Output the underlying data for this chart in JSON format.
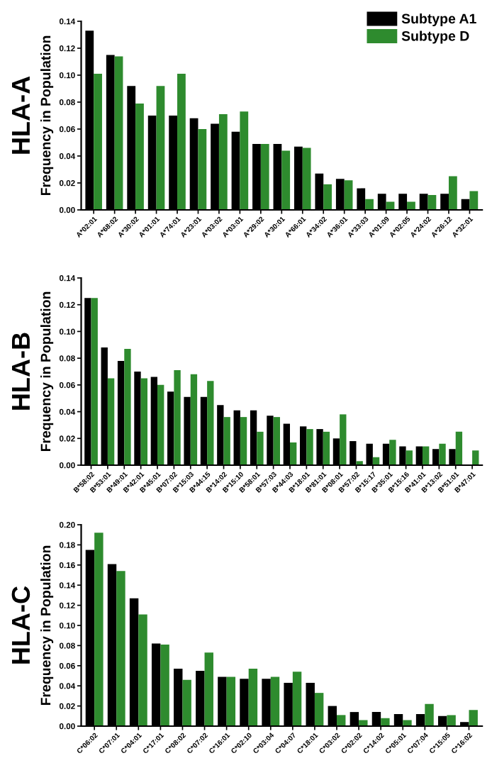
{
  "chart_data": [
    {
      "type": "bar",
      "title": "HLA-A",
      "ylabel": "Frequency in Population",
      "legend": "top right",
      "categories": [
        "A*02:01",
        "A*68:02",
        "A*30:02",
        "A*01:01",
        "A*74:01",
        "A*23:01",
        "A*03:02",
        "A*03:01",
        "A*29:02",
        "A*30:01",
        "A*66:01",
        "A*34:02",
        "A*36:01",
        "A*33:03",
        "A*01:09",
        "A*02:05",
        "A*24:02",
        "A*26:12",
        "A*32:01"
      ],
      "series": [
        {
          "name": "Subtype A1",
          "color": "#000000",
          "values": [
            0.133,
            0.115,
            0.092,
            0.07,
            0.07,
            0.068,
            0.064,
            0.058,
            0.049,
            0.049,
            0.047,
            0.027,
            0.023,
            0.016,
            0.012,
            0.012,
            0.012,
            0.012,
            0.008
          ]
        },
        {
          "name": "Subtype D",
          "color": "#2e8b2e",
          "values": [
            0.101,
            0.114,
            0.079,
            0.092,
            0.101,
            0.06,
            0.071,
            0.073,
            0.049,
            0.044,
            0.046,
            0.019,
            0.022,
            0.008,
            0.006,
            0.006,
            0.011,
            0.025,
            0.014
          ]
        }
      ],
      "ylim": [
        0,
        0.14
      ],
      "yticks": [
        {
          "value": 0,
          "label": "0.00"
        },
        {
          "value": 0.02,
          "label": "0.02"
        },
        {
          "value": 0.04,
          "label": "0.04"
        },
        {
          "value": 0.06,
          "label": "0.06"
        },
        {
          "value": 0.08,
          "label": "0.08"
        },
        {
          "value": 0.1,
          "label": "0.10"
        },
        {
          "value": 0.12,
          "label": "0.12"
        },
        {
          "value": 0.14,
          "label": "0.14"
        }
      ]
    },
    {
      "type": "bar",
      "title": "HLA-B",
      "ylabel": "Frequency in Population",
      "categories": [
        "B*58:02",
        "B*53:01",
        "B*49:01",
        "B*42:01",
        "B*45:01",
        "B*07:02",
        "B*15:03",
        "B*44:15",
        "B*14:02",
        "B*15:10",
        "B*58:01",
        "B*57:03",
        "B*44:03",
        "B*18:01",
        "B*81:01",
        "B*08:01",
        "B*57:02",
        "B*15:17",
        "B*35:01",
        "B*15:16",
        "B*41:01",
        "B*13:02",
        "B*51:01",
        "B*47:01"
      ],
      "series": [
        {
          "color": "#000000",
          "values": [
            0.125,
            0.088,
            0.078,
            0.07,
            0.066,
            0.055,
            0.051,
            0.051,
            0.045,
            0.041,
            0.041,
            0.037,
            0.031,
            0.029,
            0.027,
            0.02,
            0.018,
            0.016,
            0.016,
            0.014,
            0.014,
            0.012,
            0.012,
            0
          ]
        },
        {
          "color": "#2e8b2e",
          "values": [
            0.125,
            0.065,
            0.087,
            0.065,
            0.06,
            0.071,
            0.068,
            0.063,
            0.036,
            0.036,
            0.025,
            0.036,
            0.017,
            0.027,
            0.025,
            0.038,
            0.003,
            0.006,
            0.019,
            0.011,
            0.014,
            0.016,
            0.025,
            0.011
          ]
        }
      ],
      "ylim": [
        0,
        0.14
      ],
      "yticks": [
        {
          "value": 0,
          "label": "0.00"
        },
        {
          "value": 0.02,
          "label": "0.02"
        },
        {
          "value": 0.04,
          "label": "0.04"
        },
        {
          "value": 0.06,
          "label": "0.06"
        },
        {
          "value": 0.08,
          "label": "0.08"
        },
        {
          "value": 0.1,
          "label": "0.10"
        },
        {
          "value": 0.12,
          "label": "0.12"
        },
        {
          "value": 0.14,
          "label": "0.14"
        }
      ]
    },
    {
      "type": "bar",
      "title": "HLA-C",
      "ylabel": "Frequency in Population",
      "categories": [
        "C*06:02",
        "C*07:01",
        "C*04:01",
        "C*17:01",
        "C*08:02",
        "C*07:02",
        "C*16:01",
        "C*02:10",
        "C*03:04",
        "C*04:07",
        "C*18:01",
        "C*03:02",
        "C*02:02",
        "C*14:02",
        "C*05:01",
        "C*07:04",
        "C*15:05",
        "C*16:02"
      ],
      "series": [
        {
          "color": "#000000",
          "values": [
            0.175,
            0.161,
            0.127,
            0.082,
            0.057,
            0.055,
            0.049,
            0.047,
            0.047,
            0.043,
            0.043,
            0.02,
            0.014,
            0.014,
            0.012,
            0.012,
            0.01,
            0.004
          ]
        },
        {
          "color": "#2e8b2e",
          "values": [
            0.192,
            0.154,
            0.111,
            0.081,
            0.046,
            0.073,
            0.049,
            0.057,
            0.049,
            0.054,
            0.033,
            0.011,
            0.006,
            0.008,
            0.006,
            0.022,
            0.011,
            0.016
          ]
        }
      ],
      "ylim": [
        0,
        0.2
      ],
      "yticks": [
        {
          "value": 0,
          "label": "0.00"
        },
        {
          "value": 0.02,
          "label": "0.02"
        },
        {
          "value": 0.04,
          "label": "0.04"
        },
        {
          "value": 0.06,
          "label": "0.06"
        },
        {
          "value": 0.08,
          "label": "0.08"
        },
        {
          "value": 0.1,
          "label": "0.10"
        },
        {
          "value": 0.12,
          "label": "0.12"
        },
        {
          "value": 0.14,
          "label": "0.14"
        },
        {
          "value": 0.16,
          "label": "0.16"
        },
        {
          "value": 0.18,
          "label": "0.18"
        },
        {
          "value": 0.2,
          "label": "0.20"
        }
      ]
    }
  ]
}
